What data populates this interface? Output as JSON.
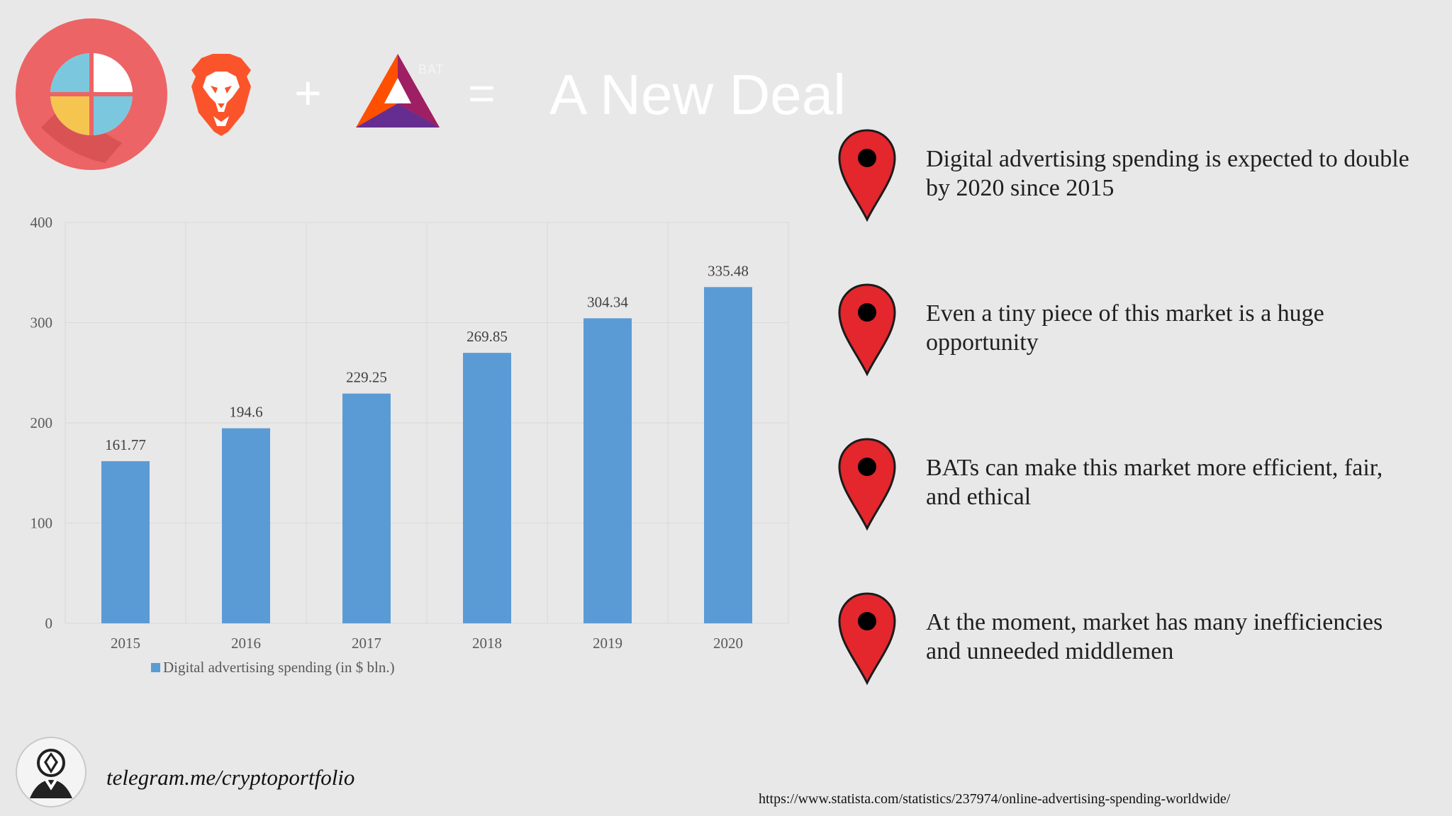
{
  "header": {
    "plus": "+",
    "equals": "=",
    "bat_label": "BAT",
    "title": "A New Deal"
  },
  "chart_data": {
    "type": "bar",
    "categories": [
      "2015",
      "2016",
      "2017",
      "2018",
      "2019",
      "2020"
    ],
    "values": [
      161.77,
      194.6,
      229.25,
      269.85,
      304.34,
      335.48
    ],
    "data_labels": [
      "161.77",
      "194.6",
      "229.25",
      "269.85",
      "304.34",
      "335.48"
    ],
    "y_ticks": [
      0,
      100,
      200,
      300,
      400
    ],
    "ylim": [
      0,
      400
    ],
    "grid": true,
    "legend_position": "bottom-left",
    "legend": "Digital advertising spending (in $ bln.)",
    "series": [
      {
        "name": "Digital advertising spending (in $ bln.)",
        "values": [
          161.77,
          194.6,
          229.25,
          269.85,
          304.34,
          335.48
        ]
      }
    ],
    "colors": {
      "bar": "#5b9bd5",
      "grid": "#d9d9d9",
      "axis_text": "#595959"
    }
  },
  "bullets": [
    {
      "text": "Digital advertising spending is expected to double by 2020 since 2015",
      "icon": "map-pin-icon"
    },
    {
      "text": "Even a tiny piece of this market is a huge opportunity",
      "icon": "map-pin-icon"
    },
    {
      "text": "BATs can make this market more efficient, fair, and ethical",
      "icon": "map-pin-icon"
    },
    {
      "text": "At the moment, market has many inefficiencies and unneeded middlemen",
      "icon": "map-pin-icon"
    }
  ],
  "footer": {
    "telegram": "telegram.me/cryptoportfolio",
    "source": "https://www.statista.com/statistics/237974/online-advertising-spending-worldwide/"
  },
  "colors": {
    "background": "#e8e8e8",
    "pin_red": "#e4262d",
    "brave_orange": "#fb542b",
    "title_white": "#ffffff"
  }
}
